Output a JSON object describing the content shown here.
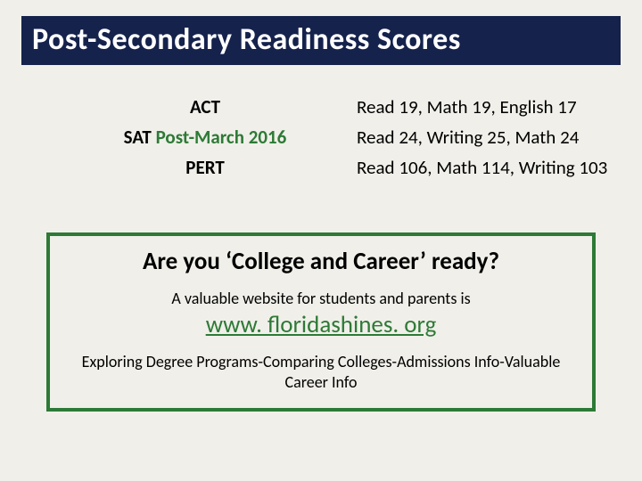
{
  "title": "Post-Secondary Readiness Scores",
  "scores": {
    "rows": [
      {
        "label": "ACT",
        "value": "Read 19, Math 19, English 17"
      },
      {
        "label_prefix": "SAT ",
        "label_highlight": "Post-March 2016",
        "value": "Read 24, Writing 25, Math 24"
      },
      {
        "label": "PERT",
        "value": "Read 106, Math 114, Writing 103"
      }
    ]
  },
  "box": {
    "question": "Are you ‘College and Career’ ready?",
    "valuable_line": "A valuable website for students and parents is",
    "link_text": "www. floridashines. org",
    "link_href": "http://www.floridashines.org",
    "explore": "Exploring Degree Programs-Comparing Colleges-Admissions Info-Valuable Career Info"
  },
  "colors": {
    "title_bg": "#15224c",
    "accent_green": "#2d7a36",
    "page_bg": "#f0efe9"
  }
}
